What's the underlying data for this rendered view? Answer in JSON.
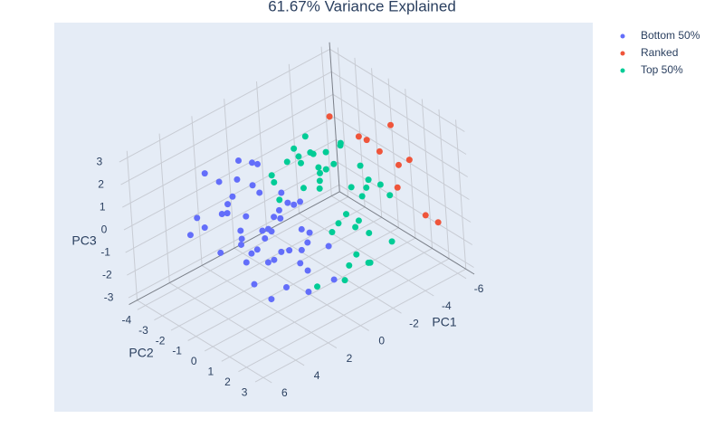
{
  "chart_data": {
    "type": "scatter3d",
    "title": "61.67% Variance Explained",
    "x_label": "PC1",
    "y_label": "PC2",
    "z_label": "PC3",
    "xlim": [
      -6.5,
      6.5
    ],
    "ylim": [
      -4.5,
      3.5
    ],
    "zlim": [
      -3.3,
      3.3
    ],
    "xticks": [
      -6,
      -4,
      -2,
      0,
      2,
      4,
      6
    ],
    "yticks": [
      -4,
      -3,
      -2,
      -1,
      0,
      1,
      2,
      3
    ],
    "zticks": [
      -3,
      -2,
      -1,
      0,
      1,
      2,
      3
    ],
    "grid": true,
    "legend": "top-right",
    "series": [
      {
        "name": "Bottom 50%",
        "color": "#636efa",
        "x": [
          3,
          2,
          1.5,
          4,
          2.5,
          1,
          0.5,
          3.5,
          2,
          1,
          0,
          2.8,
          1.2,
          3.1,
          0.8,
          2.2,
          4.2,
          1.7,
          2.6,
          0.3,
          3.4,
          1.9,
          2.9,
          0.6,
          1.4,
          3.8,
          2.4,
          1.1,
          0.2,
          2,
          3,
          1.6,
          2.7,
          0.9,
          4.5,
          1.3,
          2.1,
          3.3,
          0.4,
          1.8,
          2.5,
          3.6,
          0.7,
          1.5,
          2.3,
          1,
          3.9,
          2.8,
          0.1,
          1.2
        ],
        "y": [
          -2,
          -1,
          0,
          -3,
          1,
          -2,
          -1,
          0,
          2,
          -3,
          -1,
          -0.5,
          1,
          -1.5,
          0.5,
          -2.5,
          -1,
          2,
          0,
          -2,
          -0.5,
          1.5,
          -3,
          0,
          -1,
          0.5,
          -1.5,
          2.5,
          -2.5,
          0,
          1,
          -3.5,
          -1,
          1,
          -2,
          0,
          -0.5,
          2,
          -1.5,
          -2,
          1.5,
          -2.5,
          0.5,
          -1,
          -2,
          1,
          0,
          0.5,
          -3,
          2.8
        ],
        "z": [
          0.5,
          -1,
          1,
          -0.5,
          0,
          2,
          -0.2,
          1.5,
          -1.5,
          0.8,
          0.3,
          -2,
          0.5,
          1.2,
          -0.8,
          0,
          -0.3,
          1,
          2.2,
          -1.2,
          0.6,
          -0.5,
          1.8,
          0.9,
          -1.8,
          0.2,
          -0.6,
          0.4,
          1.4,
          -1,
          1.1,
          0.7,
          -1.3,
          -0.2,
          0.9,
          1.7,
          0.1,
          -0.8,
          -0.4,
          2.4,
          0.3,
          -0.1,
          1.3,
          -0.7,
          1,
          -1.4,
          0.4,
          -2.2,
          0.2,
          -0.9
        ]
      },
      {
        "name": "Ranked",
        "color": "#EF553B",
        "x": [
          -4,
          -5,
          -4.5,
          -5.5,
          -6,
          -4.2,
          -5.2,
          -3.8,
          -5.8,
          -4.8
        ],
        "y": [
          0,
          0.5,
          -1,
          1,
          2,
          1.5,
          -0.5,
          -2,
          0,
          2.5
        ],
        "z": [
          2,
          2.5,
          1.5,
          1,
          -1.5,
          0.5,
          0.8,
          2.2,
          0.2,
          -0.5
        ]
      },
      {
        "name": "Top 50%",
        "color": "#00cc96",
        "x": [
          -1,
          -2,
          -0.5,
          -3,
          -1.5,
          -2.5,
          0,
          -1,
          -2,
          -3.5,
          -0.8,
          -1.8,
          -2.8,
          -0.3,
          -1.2,
          -2.2,
          -3.2,
          -0.6,
          -1.6,
          -2.6,
          -4,
          -0.9,
          -1.9,
          -2.9,
          -0.4,
          -1.4,
          -2.4,
          -3.4,
          -0.2,
          -1.1,
          -2.1,
          -3.1,
          -0.7,
          -1.7,
          -2.7,
          -1.3,
          -2.3,
          0.5,
          -3.8,
          -1
        ],
        "y": [
          0,
          -1,
          1,
          -2,
          0.5,
          1.5,
          -1.5,
          2,
          -0.5,
          0,
          2.5,
          -2,
          1,
          0.3,
          -1.2,
          0.8,
          -0.8,
          -2.5,
          2.2,
          -0.2,
          1.2,
          -1.8,
          0.6,
          -1,
          1.8,
          -0.4,
          2.8,
          0.4,
          -0.6,
          1.4,
          -2.2,
          1.6,
          0.9,
          -1.4,
          0.2,
          2.4,
          -1.6,
          1,
          -0.3,
          -2.8
        ],
        "z": [
          1,
          0.5,
          2.5,
          0,
          -0.5,
          1.5,
          0.2,
          -1,
          2,
          -0.3,
          0.8,
          1.2,
          -1.2,
          3,
          0.4,
          -0.8,
          1.8,
          0.6,
          -1.5,
          2.2,
          0.1,
          1.4,
          -0.2,
          0.9,
          -2,
          1.6,
          -0.6,
          0.3,
          2.8,
          -1.8,
          0.7,
          1.1,
          -0.4,
          2.4,
          0.5,
          -1.3,
          1.3,
          -2.3,
          0.8,
          0
        ]
      }
    ]
  }
}
